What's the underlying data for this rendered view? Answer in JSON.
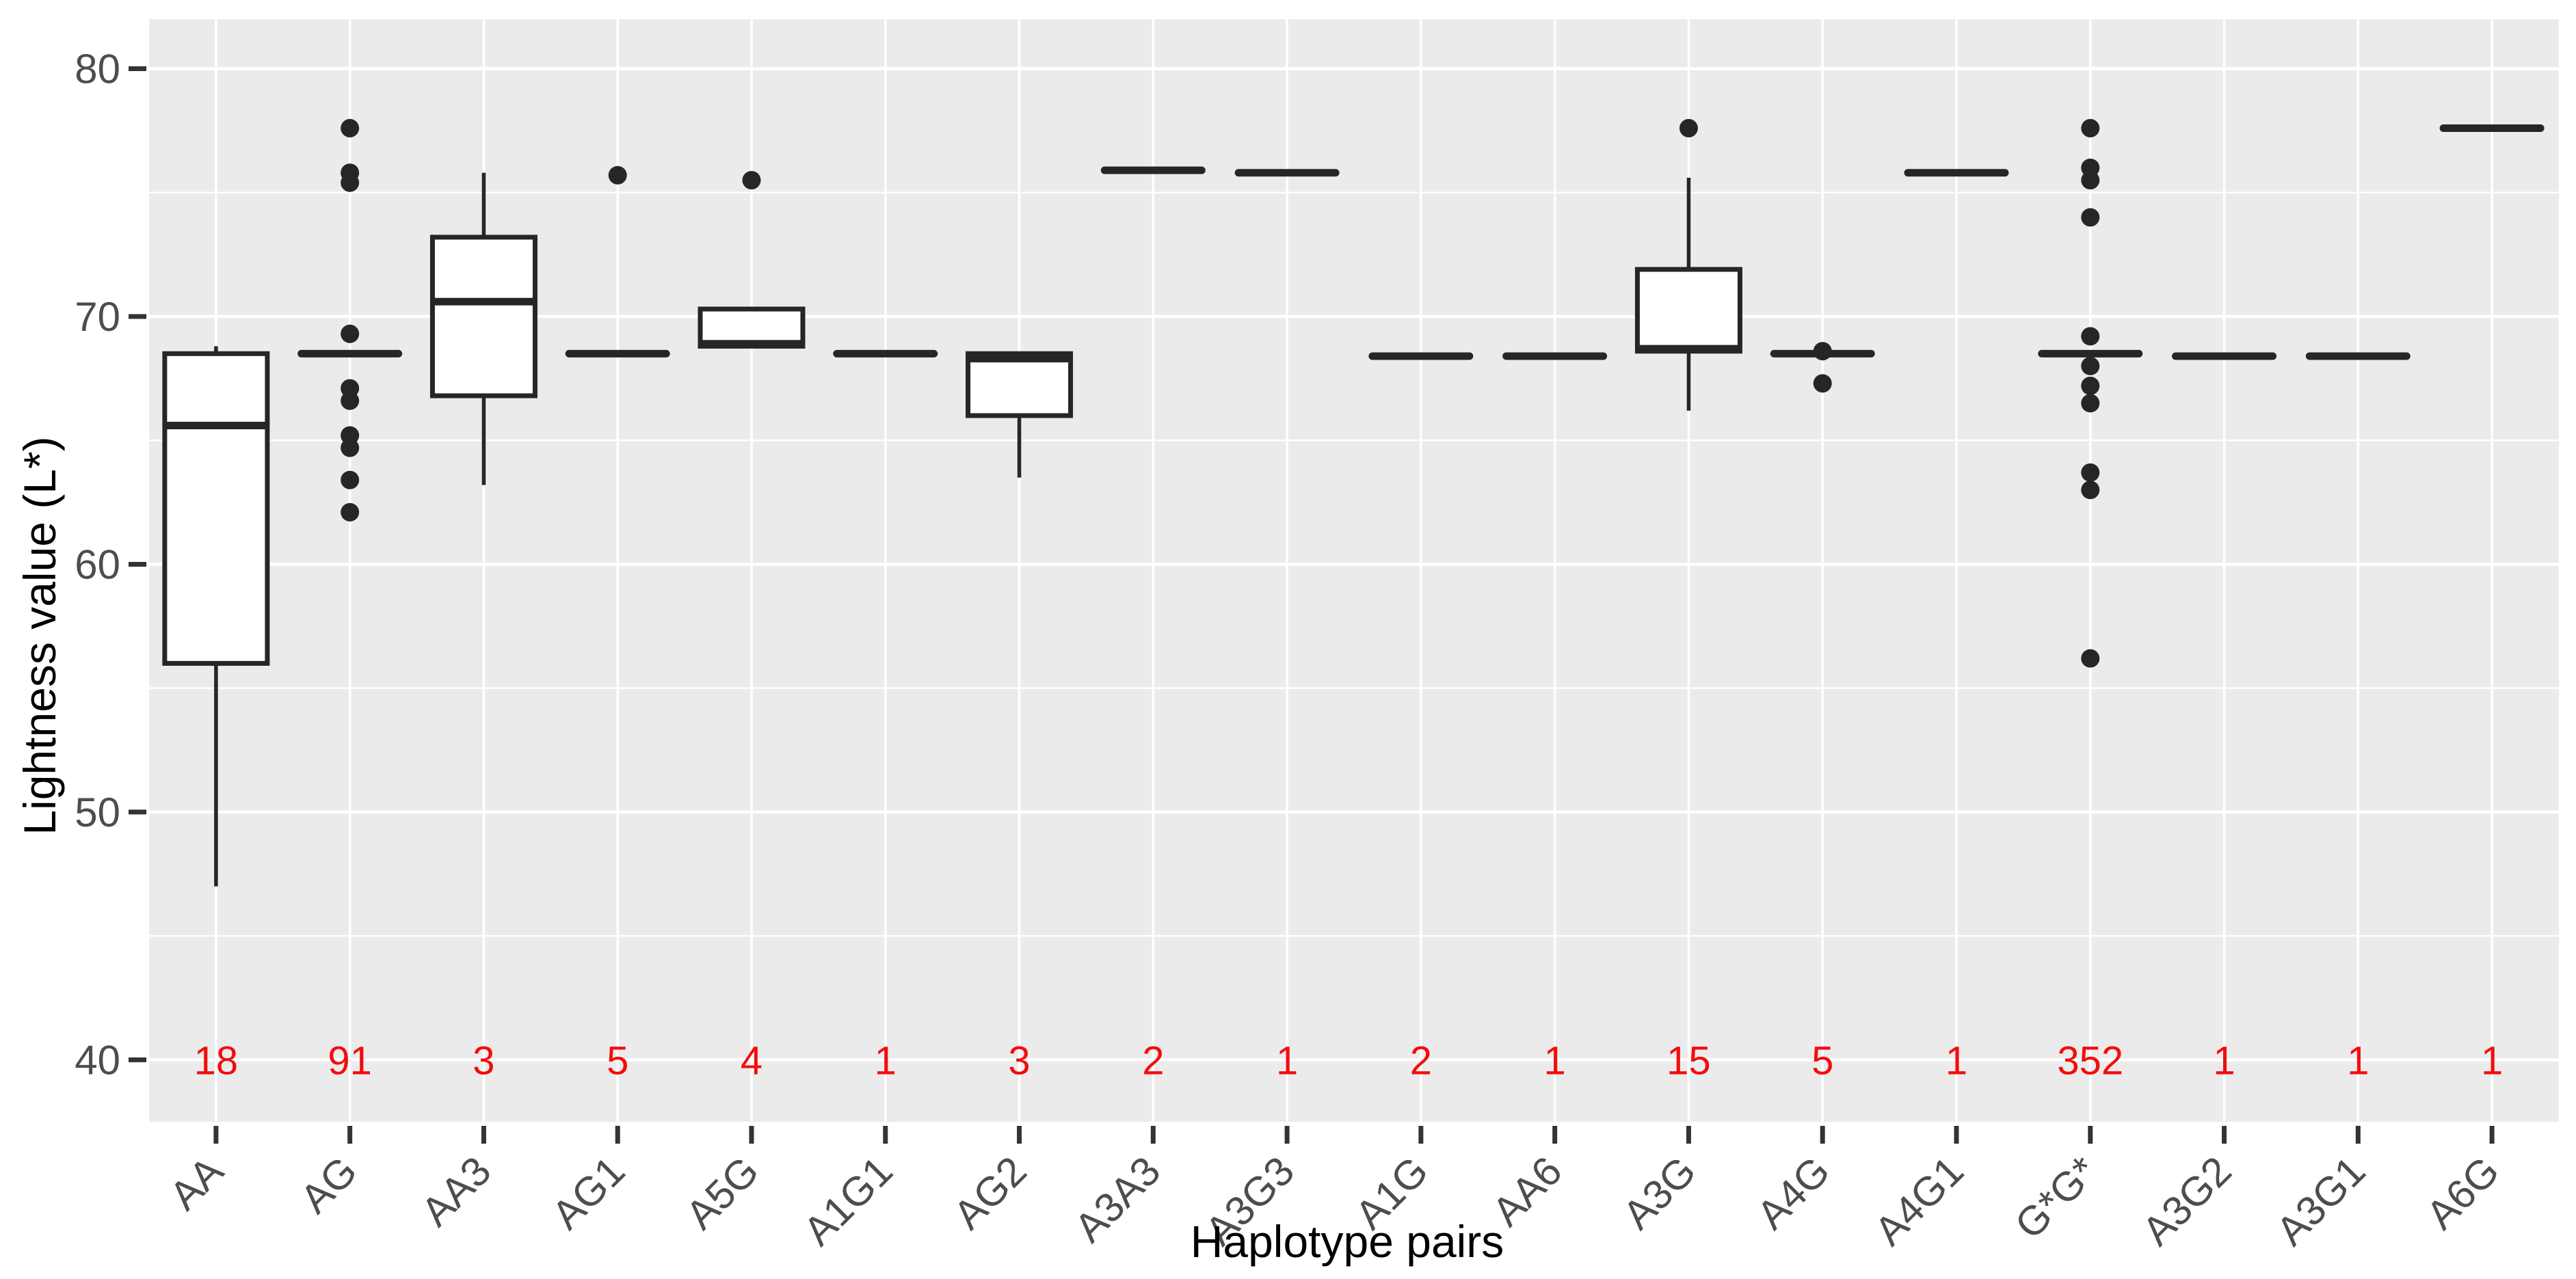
{
  "chart_data": {
    "type": "boxplot",
    "title": "",
    "xlabel": "Haplotype pairs",
    "ylabel": "Lightness value (L*)",
    "ylim": [
      37.5,
      82.0
    ],
    "yticks_major": [
      40,
      50,
      60,
      70,
      80
    ],
    "yticks_minor": [
      45,
      55,
      65,
      75
    ],
    "grid": "major-and-minor-horizontal, major-vertical-per-category",
    "legend_position": "none",
    "count_row_y": 40,
    "colors": {
      "panel": "#ebebeb",
      "grid": "#ffffff",
      "stroke": "#262626",
      "tick_text": "#4d4d4d",
      "axis_title": "#000000",
      "count": "#f20d0d"
    },
    "categories": [
      {
        "label": "AA",
        "n": 18,
        "box": {
          "low": 47.0,
          "q1": 56.0,
          "median": 65.6,
          "q3": 68.5,
          "high": 68.8
        },
        "outliers": []
      },
      {
        "label": "AG",
        "n": 91,
        "box": {
          "low": 68.5,
          "q1": 68.5,
          "median": 68.5,
          "q3": 68.5,
          "high": 68.5
        },
        "outliers": [
          77.6,
          75.8,
          75.4,
          69.3,
          67.1,
          66.6,
          65.2,
          64.7,
          63.4,
          62.1
        ]
      },
      {
        "label": "AA3",
        "n": 3,
        "box": {
          "low": 63.2,
          "q1": 66.8,
          "median": 70.6,
          "q3": 73.2,
          "high": 75.8
        },
        "outliers": []
      },
      {
        "label": "AG1",
        "n": 5,
        "box": {
          "low": 68.5,
          "q1": 68.5,
          "median": 68.5,
          "q3": 68.5,
          "high": 68.5
        },
        "outliers": [
          75.7
        ]
      },
      {
        "label": "A5G",
        "n": 4,
        "box": {
          "low": 68.8,
          "q1": 68.8,
          "median": 68.9,
          "q3": 70.3,
          "high": 70.3
        },
        "outliers": [
          75.5
        ]
      },
      {
        "label": "A1G1",
        "n": 1,
        "box": {
          "low": 68.5,
          "q1": 68.5,
          "median": 68.5,
          "q3": 68.5,
          "high": 68.5
        },
        "outliers": []
      },
      {
        "label": "AG2",
        "n": 3,
        "box": {
          "low": 63.5,
          "q1": 66.0,
          "median": 68.3,
          "q3": 68.5,
          "high": 68.5
        },
        "outliers": []
      },
      {
        "label": "A3A3",
        "n": 2,
        "box": {
          "low": 75.9,
          "q1": 75.9,
          "median": 75.9,
          "q3": 75.9,
          "high": 75.9
        },
        "outliers": []
      },
      {
        "label": "A3G3",
        "n": 1,
        "box": {
          "low": 75.8,
          "q1": 75.8,
          "median": 75.8,
          "q3": 75.8,
          "high": 75.8
        },
        "outliers": []
      },
      {
        "label": "A1G",
        "n": 2,
        "box": {
          "low": 68.4,
          "q1": 68.4,
          "median": 68.4,
          "q3": 68.4,
          "high": 68.4
        },
        "outliers": []
      },
      {
        "label": "AA6",
        "n": 1,
        "box": {
          "low": 68.4,
          "q1": 68.4,
          "median": 68.4,
          "q3": 68.4,
          "high": 68.4
        },
        "outliers": []
      },
      {
        "label": "A3G",
        "n": 15,
        "box": {
          "low": 66.2,
          "q1": 68.6,
          "median": 68.7,
          "q3": 71.9,
          "high": 75.6
        },
        "outliers": [
          77.6
        ]
      },
      {
        "label": "A4G",
        "n": 5,
        "box": {
          "low": 68.5,
          "q1": 68.5,
          "median": 68.5,
          "q3": 68.5,
          "high": 68.5
        },
        "outliers": [
          68.6,
          67.3
        ]
      },
      {
        "label": "A4G1",
        "n": 1,
        "box": {
          "low": 75.8,
          "q1": 75.8,
          "median": 75.8,
          "q3": 75.8,
          "high": 75.8
        },
        "outliers": []
      },
      {
        "label": "G*G*",
        "n": 352,
        "box": {
          "low": 68.5,
          "q1": 68.5,
          "median": 68.5,
          "q3": 68.5,
          "high": 68.5
        },
        "outliers": [
          77.6,
          76.0,
          75.5,
          74.0,
          69.2,
          68.0,
          67.2,
          66.5,
          63.7,
          63.0,
          56.2
        ]
      },
      {
        "label": "A3G2",
        "n": 1,
        "box": {
          "low": 68.4,
          "q1": 68.4,
          "median": 68.4,
          "q3": 68.4,
          "high": 68.4
        },
        "outliers": []
      },
      {
        "label": "A3G1",
        "n": 1,
        "box": {
          "low": 68.4,
          "q1": 68.4,
          "median": 68.4,
          "q3": 68.4,
          "high": 68.4
        },
        "outliers": []
      },
      {
        "label": "A6G",
        "n": 1,
        "box": {
          "low": 77.6,
          "q1": 77.6,
          "median": 77.6,
          "q3": 77.6,
          "high": 77.6
        },
        "outliers": []
      }
    ]
  }
}
